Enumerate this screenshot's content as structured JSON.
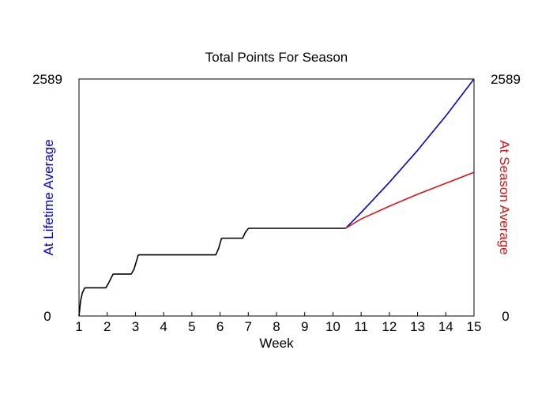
{
  "chart_data": {
    "type": "line",
    "title": "Total Points For Season",
    "xlabel": "Week",
    "ylabel_left": "At Lifetime Average",
    "ylabel_right": "At Season Average",
    "xlim": [
      1,
      15
    ],
    "ylim": [
      0,
      2589
    ],
    "x_ticks": [
      "1",
      "2",
      "3",
      "4",
      "5",
      "6",
      "7",
      "8",
      "9",
      "10",
      "11",
      "12",
      "13",
      "14",
      "15"
    ],
    "y_ticks_left": [
      "0",
      "2589"
    ],
    "y_ticks_right": [
      "0",
      "2589"
    ],
    "grid": false,
    "colors": {
      "actual": "#000000",
      "lifetime": "#0000cc",
      "season": "#dd1111",
      "left_label": "#0000cc",
      "right_label": "#dd1111"
    },
    "series": [
      {
        "key": "actual",
        "points": [
          [
            1.0,
            0
          ],
          [
            1.06,
            170
          ],
          [
            1.12,
            255
          ],
          [
            1.2,
            305
          ],
          [
            1.25,
            308
          ],
          [
            1.95,
            308
          ],
          [
            2.05,
            360
          ],
          [
            2.2,
            455
          ],
          [
            2.25,
            458
          ],
          [
            2.85,
            458
          ],
          [
            2.95,
            510
          ],
          [
            3.1,
            665
          ],
          [
            3.15,
            668
          ],
          [
            5.85,
            668
          ],
          [
            5.95,
            740
          ],
          [
            6.05,
            848
          ],
          [
            6.1,
            850
          ],
          [
            6.8,
            850
          ],
          [
            6.9,
            915
          ],
          [
            7.0,
            955
          ],
          [
            7.05,
            958
          ],
          [
            10.45,
            958
          ]
        ]
      },
      {
        "key": "lifetime",
        "points": [
          [
            10.45,
            958
          ],
          [
            11.0,
            1130
          ],
          [
            12.0,
            1460
          ],
          [
            13.0,
            1810
          ],
          [
            14.0,
            2185
          ],
          [
            15.0,
            2589
          ]
        ]
      },
      {
        "key": "season",
        "points": [
          [
            10.45,
            958
          ],
          [
            11.0,
            1060
          ],
          [
            12.0,
            1200
          ],
          [
            13.0,
            1330
          ],
          [
            14.0,
            1450
          ],
          [
            15.0,
            1570
          ]
        ]
      }
    ]
  }
}
